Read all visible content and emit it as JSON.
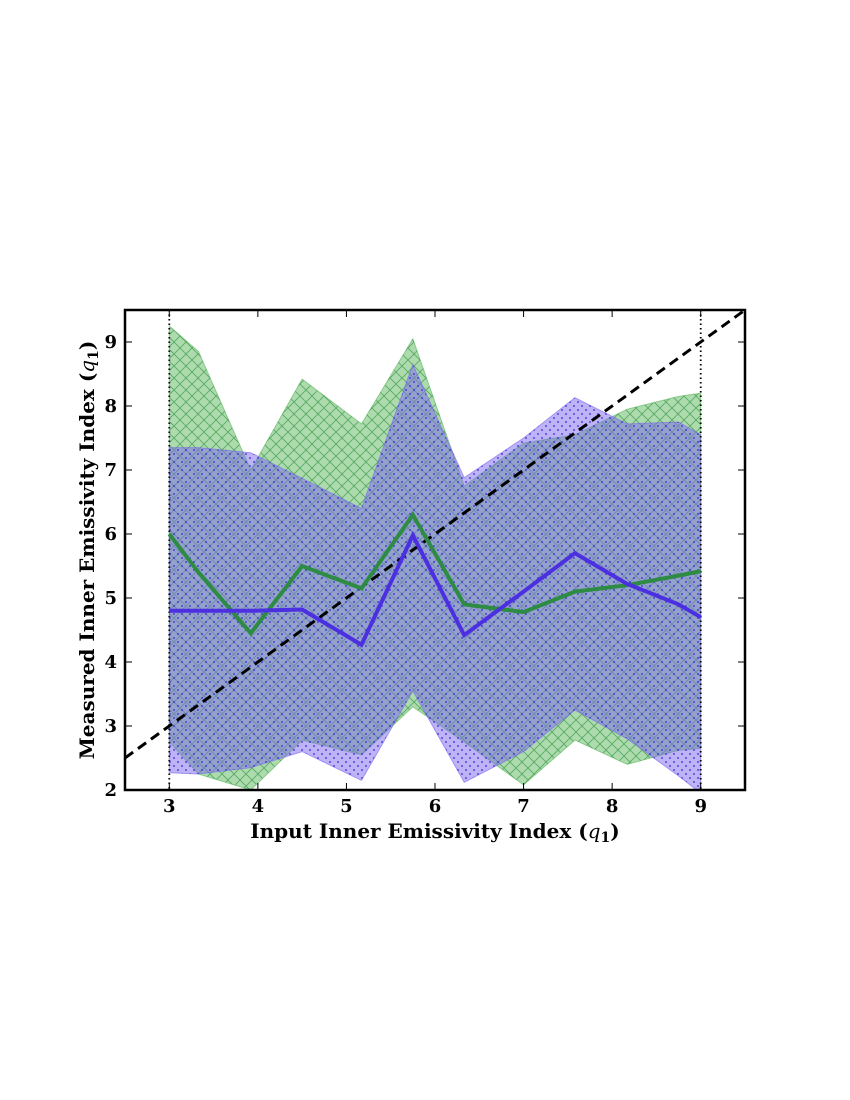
{
  "chart_data": {
    "type": "area",
    "title": "",
    "xlabel": "Input Inner Emissivity Index",
    "ylabel": "Measured Inner Emissivity Index",
    "axis_symbol": "q",
    "axis_symbol_sub": "1",
    "xlim": [
      2.5,
      9.5
    ],
    "ylim": [
      2,
      9.5
    ],
    "xticks": [
      3,
      4,
      5,
      6,
      7,
      8,
      9
    ],
    "yticks": [
      2,
      3,
      4,
      5,
      6,
      7,
      8,
      9
    ],
    "xtick_labels": [
      "3",
      "4",
      "5",
      "6",
      "7",
      "8",
      "9"
    ],
    "ytick_labels": [
      "2",
      "3",
      "4",
      "5",
      "6",
      "7",
      "8",
      "9"
    ],
    "grid": false,
    "legend": "none",
    "vertical_dotted_lines": [
      3,
      9
    ],
    "reference_line": {
      "name": "y = x",
      "style": "dashed",
      "color": "#000000"
    },
    "x": [
      3.0,
      3.33,
      3.92,
      4.5,
      5.17,
      5.75,
      6.33,
      7.0,
      7.58,
      8.17,
      8.75,
      9.0
    ],
    "series": [
      {
        "name": "green",
        "color": "#2e8b44",
        "fill_color": "#5cb85c",
        "hatch": "crosshatch",
        "median": [
          6.0,
          5.4,
          4.45,
          5.5,
          5.15,
          6.3,
          4.9,
          4.78,
          5.1,
          5.2,
          5.35,
          5.42
        ],
        "upper": [
          9.25,
          8.85,
          7.0,
          8.42,
          7.72,
          9.05,
          6.75,
          7.42,
          7.55,
          7.95,
          8.15,
          8.2
        ],
        "lower": [
          2.75,
          2.25,
          2.0,
          2.78,
          2.55,
          3.3,
          2.75,
          2.08,
          2.78,
          2.4,
          2.62,
          2.65
        ]
      },
      {
        "name": "blue",
        "color": "#4b2fe0",
        "fill_color": "#7b68ee",
        "hatch": "dots",
        "median": [
          4.8,
          4.8,
          4.8,
          4.82,
          4.27,
          5.98,
          4.42,
          5.1,
          5.7,
          5.22,
          4.9,
          4.7
        ],
        "upper": [
          7.35,
          7.35,
          7.27,
          6.87,
          6.4,
          8.65,
          6.88,
          7.5,
          8.13,
          7.72,
          7.75,
          7.55
        ],
        "lower": [
          2.27,
          2.25,
          2.35,
          2.6,
          2.15,
          3.55,
          2.12,
          2.6,
          3.25,
          2.8,
          2.22,
          1.95
        ]
      }
    ]
  }
}
